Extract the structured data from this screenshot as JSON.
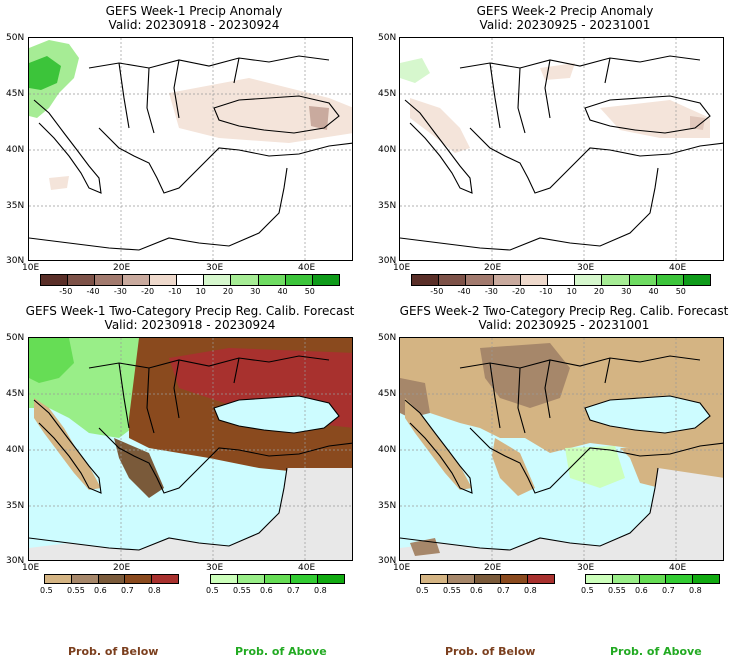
{
  "panels": [
    {
      "id": "p1",
      "title_line1": "GEFS Week-1 Precip Anomaly",
      "title_line2": "Valid: 20230918 - 20230924",
      "lat_labels": [
        "50N",
        "45N",
        "40N",
        "35N",
        "30N"
      ],
      "lon_labels": [
        "10E",
        "20E",
        "30E",
        "40E"
      ],
      "kind": "anomaly"
    },
    {
      "id": "p2",
      "title_line1": "GEFS Week-2 Precip Anomaly",
      "title_line2": "Valid: 20230925 - 20231001",
      "lat_labels": [
        "50N",
        "45N",
        "40N",
        "35N",
        "30N"
      ],
      "lon_labels": [
        "10E",
        "20E",
        "30E",
        "40E"
      ],
      "kind": "anomaly"
    },
    {
      "id": "p3",
      "title_line1": "GEFS Week-1 Two-Category Precip Reg. Calib. Forecast",
      "title_line2": "Valid: 20230918 - 20230924",
      "lat_labels": [
        "50N",
        "45N",
        "40N",
        "35N",
        "30N"
      ],
      "lon_labels": [
        "10E",
        "20E",
        "30E",
        "40E"
      ],
      "kind": "prob"
    },
    {
      "id": "p4",
      "title_line1": "GEFS Week-2 Two-Category Precip Reg. Calib. Forecast",
      "title_line2": "Valid: 20230925 - 20231001",
      "lat_labels": [
        "50N",
        "45N",
        "40N",
        "35N",
        "30N"
      ],
      "lon_labels": [
        "10E",
        "20E",
        "30E",
        "40E"
      ],
      "kind": "prob"
    }
  ],
  "anomaly_colorbar": {
    "labels": [
      "-50",
      "-40",
      "-30",
      "-20",
      "-10",
      "10",
      "20",
      "30",
      "40",
      "50"
    ],
    "colors": [
      "#5a2f28",
      "#7d5248",
      "#a27a6e",
      "#c9aa9e",
      "#eed9cc",
      "#ffffff",
      "#d6f7cd",
      "#a6ec95",
      "#6fdc62",
      "#3cc43a",
      "#0f9b1a"
    ]
  },
  "below_colorbar": {
    "labels": [
      "0.5",
      "0.55",
      "0.6",
      "0.7",
      "0.8"
    ],
    "colors": [
      "#d4b483",
      "#a6876a",
      "#7a5a3a",
      "#8a4a1e",
      "#a8312e"
    ]
  },
  "above_colorbar": {
    "labels": [
      "0.5",
      "0.55",
      "0.6",
      "0.7",
      "0.8"
    ],
    "colors": [
      "#ccffbb",
      "#99ee88",
      "#66dd55",
      "#33cc33",
      "#11aa11"
    ]
  },
  "footer": {
    "below_label": "Prob. of Below",
    "above_label": "Prob. of Above"
  },
  "colors": {
    "sea_prob": "#cdfcff",
    "land_prob_missing": "#e8e8e8",
    "below_text": "#7b3f1e",
    "above_text": "#22aa22"
  }
}
